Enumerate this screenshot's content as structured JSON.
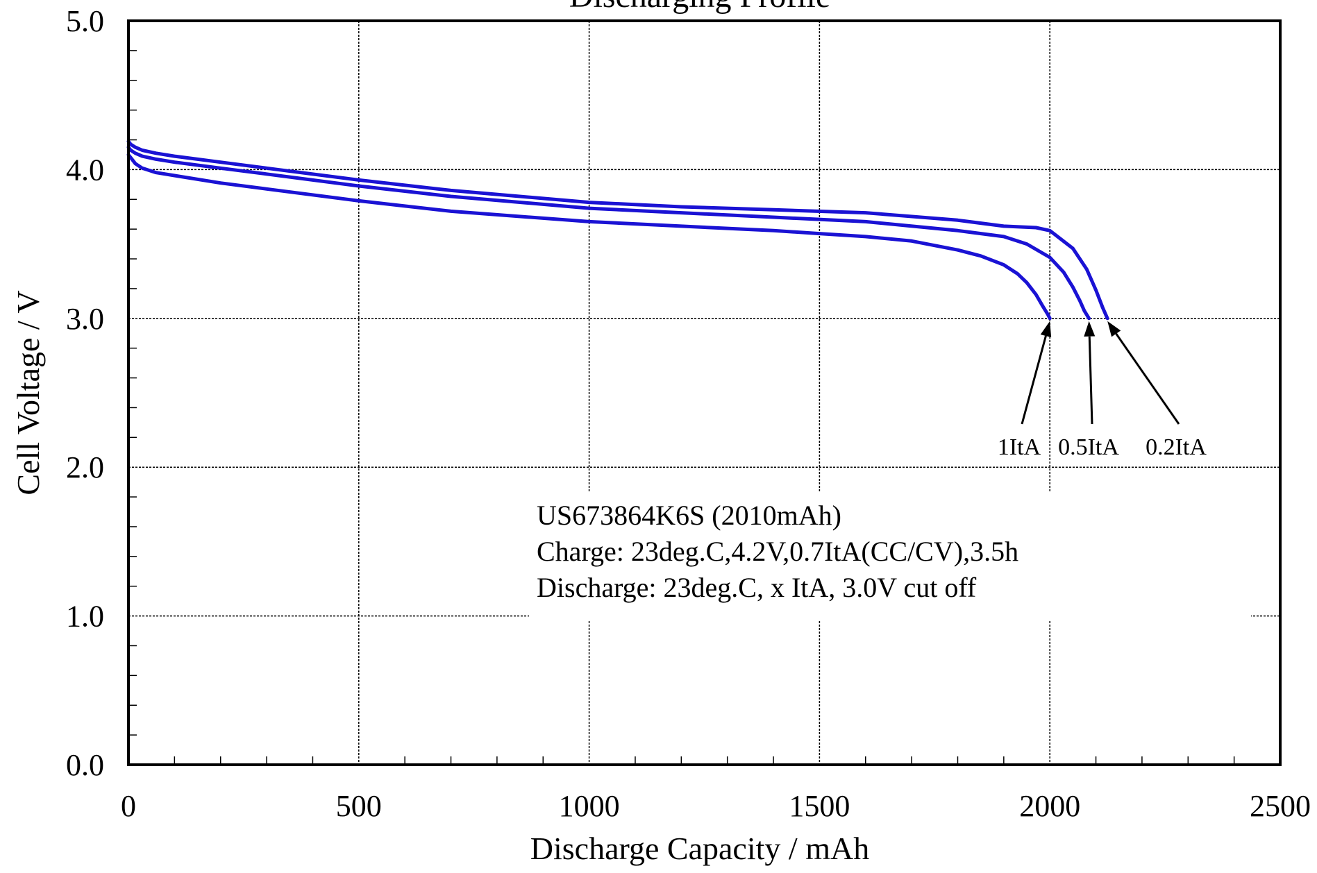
{
  "chart_data": {
    "type": "line",
    "title": "Discharging Profile",
    "xlabel": "Discharge Capacity / mAh",
    "ylabel": "Cell Voltage / V",
    "xlim": [
      0,
      2500
    ],
    "ylim": [
      0.0,
      5.0
    ],
    "x_ticks": [
      "0",
      "500",
      "1000",
      "1500",
      "2000",
      "2500"
    ],
    "y_ticks": [
      "0.0",
      "1.0",
      "2.0",
      "3.0",
      "4.0",
      "5.0"
    ],
    "grid": true,
    "line_color": "#1a12d4",
    "series": [
      {
        "name": "1ItA",
        "x": [
          0,
          5,
          15,
          30,
          60,
          100,
          200,
          300,
          500,
          700,
          1000,
          1200,
          1400,
          1500,
          1600,
          1700,
          1800,
          1850,
          1900,
          1930,
          1950,
          1970,
          1985,
          1995,
          2000
        ],
        "y": [
          4.1,
          4.08,
          4.04,
          4.01,
          3.98,
          3.96,
          3.91,
          3.87,
          3.79,
          3.72,
          3.65,
          3.62,
          3.59,
          3.57,
          3.55,
          3.52,
          3.46,
          3.42,
          3.36,
          3.3,
          3.24,
          3.16,
          3.08,
          3.03,
          3.0
        ]
      },
      {
        "name": "0.5ItA",
        "x": [
          0,
          5,
          15,
          30,
          60,
          100,
          200,
          300,
          500,
          700,
          1000,
          1200,
          1400,
          1600,
          1800,
          1900,
          1950,
          2000,
          2030,
          2050,
          2065,
          2075,
          2085
        ],
        "y": [
          4.15,
          4.13,
          4.11,
          4.09,
          4.07,
          4.05,
          4.01,
          3.97,
          3.89,
          3.82,
          3.74,
          3.71,
          3.68,
          3.65,
          3.59,
          3.55,
          3.5,
          3.41,
          3.31,
          3.21,
          3.12,
          3.05,
          3.0
        ]
      },
      {
        "name": "0.2ItA",
        "x": [
          0,
          5,
          15,
          30,
          60,
          100,
          200,
          300,
          500,
          700,
          1000,
          1200,
          1400,
          1600,
          1800,
          1900,
          1970,
          2000,
          2050,
          2080,
          2100,
          2115,
          2125
        ],
        "y": [
          4.19,
          4.17,
          4.15,
          4.13,
          4.11,
          4.09,
          4.05,
          4.01,
          3.93,
          3.86,
          3.78,
          3.75,
          3.73,
          3.71,
          3.66,
          3.62,
          3.61,
          3.59,
          3.47,
          3.33,
          3.19,
          3.07,
          3.0
        ]
      }
    ],
    "annotations": [
      {
        "text": "1ItA",
        "arrow_to": [
          2000,
          3.0
        ]
      },
      {
        "text": "0.5ItA",
        "arrow_to": [
          2085,
          3.0
        ]
      },
      {
        "text": "0.2ItA",
        "arrow_to": [
          2125,
          3.0
        ]
      }
    ],
    "info_box": [
      "US673864K6S (2010mAh)",
      "Charge: 23deg.C,4.2V,0.7ItA(CC/CV),3.5h",
      "Discharge: 23deg.C, x ItA, 3.0V cut off"
    ]
  }
}
